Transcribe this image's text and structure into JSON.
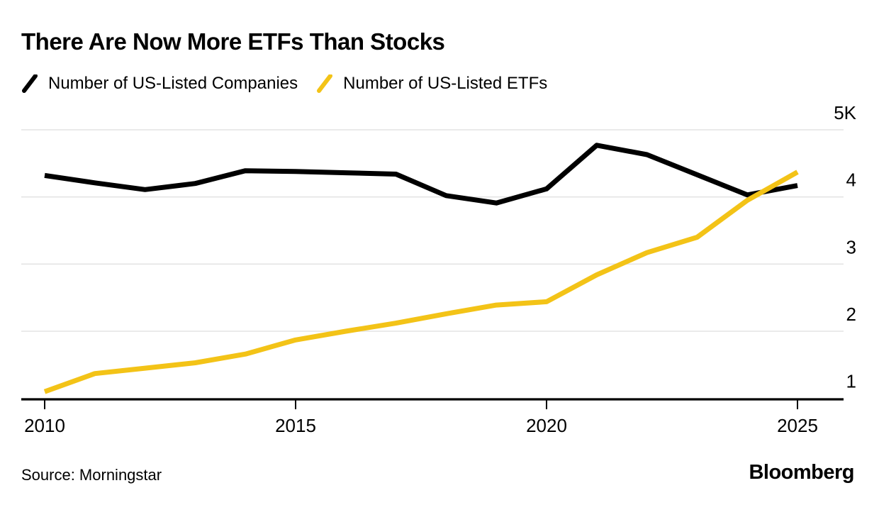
{
  "header": {
    "title": "There Are Now More ETFs Than Stocks"
  },
  "legend": [
    {
      "label": "Number of US-Listed Companies",
      "color": "#000000"
    },
    {
      "label": "Number of US-Listed ETFs",
      "color": "#F3C317"
    }
  ],
  "footer": {
    "source": "Source: Morningstar",
    "brand": "Bloomberg"
  },
  "chart_data": {
    "type": "line",
    "title": "There Are Now More ETFs Than Stocks",
    "x": [
      2010,
      2011,
      2012,
      2013,
      2014,
      2015,
      2016,
      2017,
      2018,
      2019,
      2020,
      2021,
      2022,
      2023,
      2024,
      2025
    ],
    "series": [
      {
        "name": "Number of US-Listed Companies",
        "color": "#000000",
        "values": [
          4.32,
          4.21,
          4.11,
          4.2,
          4.39,
          4.38,
          4.36,
          4.34,
          4.02,
          3.91,
          4.12,
          4.77,
          4.63,
          4.33,
          4.03,
          4.17
        ]
      },
      {
        "name": "Number of US-Listed ETFs",
        "color": "#F3C317",
        "values": [
          1.1,
          1.37,
          1.45,
          1.53,
          1.66,
          1.87,
          2.0,
          2.12,
          2.26,
          2.39,
          2.44,
          2.84,
          3.17,
          3.4,
          3.95,
          4.37
        ]
      }
    ],
    "y_units": "K (thousands)",
    "ylim": [
      1,
      5
    ],
    "xlim": [
      2010,
      2025
    ],
    "y_ticks": [
      {
        "value": 5,
        "label": "5K"
      },
      {
        "value": 4,
        "label": "4"
      },
      {
        "value": 3,
        "label": "3"
      },
      {
        "value": 2,
        "label": "2"
      },
      {
        "value": 1,
        "label": "1"
      }
    ],
    "x_ticks": [
      {
        "value": 2010,
        "label": "2010"
      },
      {
        "value": 2015,
        "label": "2015"
      },
      {
        "value": 2020,
        "label": "2020"
      },
      {
        "value": 2025,
        "label": "2025"
      }
    ],
    "grid": "horizontal",
    "legend_position": "top-left"
  }
}
